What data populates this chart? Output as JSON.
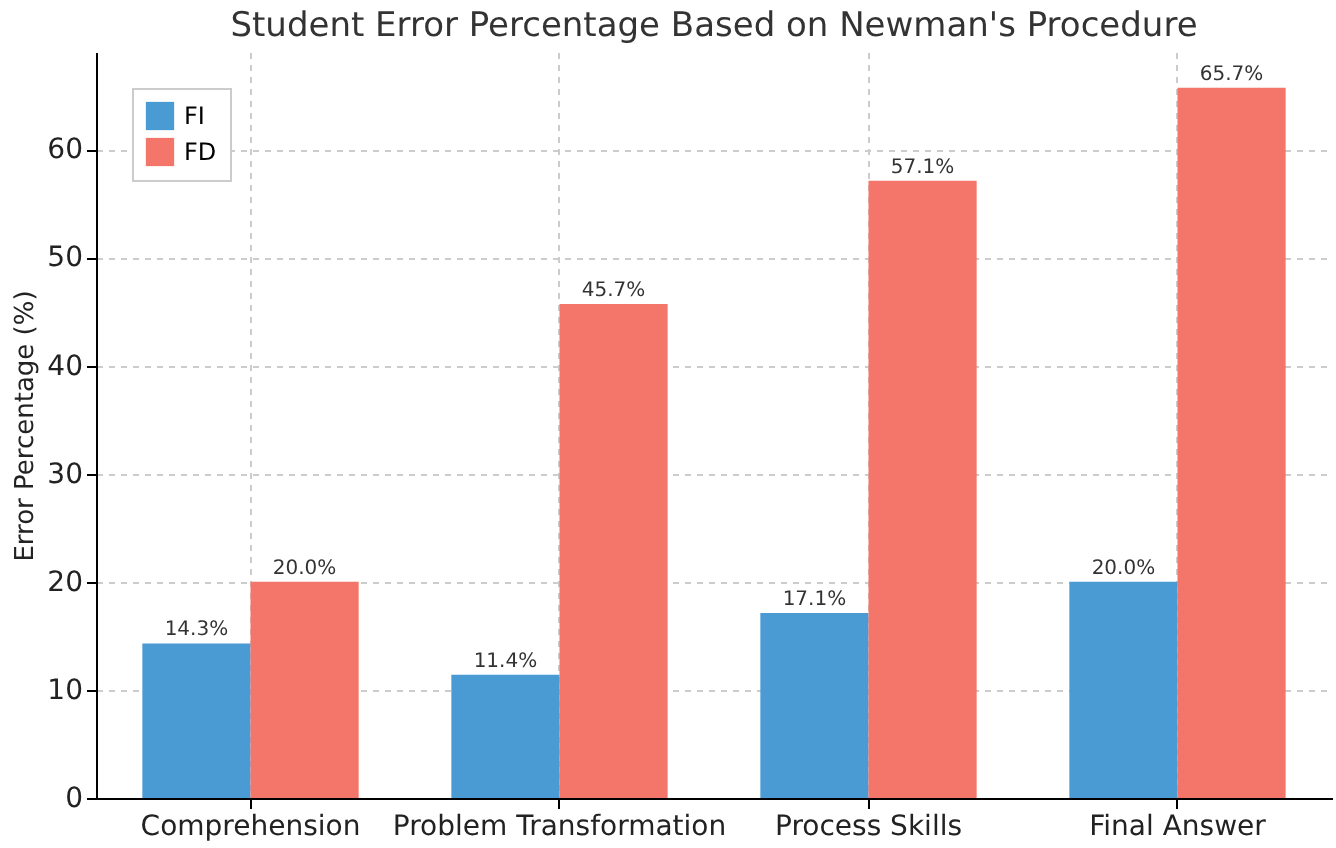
{
  "chart_data": {
    "type": "bar",
    "title": "Student Error Percentage Based on Newman's Procedure",
    "ylabel": "Error Percentage (%)",
    "categories": [
      "Comprehension",
      "Problem Transformation",
      "Process Skills",
      "Final Answer"
    ],
    "series": [
      {
        "name": "FI",
        "color": "#4a9ad4",
        "values": [
          14.3,
          11.4,
          17.1,
          20.0
        ],
        "value_labels": [
          "14.3%",
          "11.4%",
          "17.1%",
          "20.0%"
        ]
      },
      {
        "name": "FD",
        "color": "#f4756a",
        "values": [
          20.0,
          45.7,
          57.1,
          65.7
        ],
        "value_labels": [
          "20.0%",
          "45.7%",
          "57.1%",
          "65.7%"
        ]
      }
    ],
    "ylim": [
      0,
      69
    ],
    "yticks": [
      0,
      10,
      20,
      30,
      40,
      50,
      60
    ],
    "grid": true,
    "legend": "top left"
  }
}
